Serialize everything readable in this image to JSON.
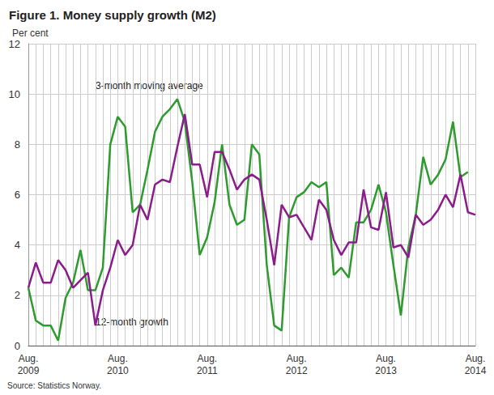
{
  "chart_data": {
    "type": "line",
    "title": "Figure 1. Money supply growth (M2)",
    "ylabel": "Per cent",
    "source": "Source: Statistics Norway.",
    "categories": [
      "Aug.\n2009",
      null,
      null,
      null,
      null,
      null,
      null,
      null,
      null,
      null,
      null,
      null,
      "Aug.\n2010",
      null,
      null,
      null,
      null,
      null,
      null,
      null,
      null,
      null,
      null,
      null,
      "Aug.\n2011",
      null,
      null,
      null,
      null,
      null,
      null,
      null,
      null,
      null,
      null,
      null,
      "Aug.\n2012",
      null,
      null,
      null,
      null,
      null,
      null,
      null,
      null,
      null,
      null,
      null,
      "Aug.\n2013",
      null,
      null,
      null,
      null,
      null,
      null,
      null,
      null,
      null,
      null,
      null,
      "Aug.\n2014"
    ],
    "series": [
      {
        "name": "3-month moving average",
        "color": "#2e9b2e",
        "values": [
          2.3,
          1.0,
          0.8,
          0.8,
          0.2,
          1.9,
          2.5,
          3.8,
          2.2,
          2.2,
          3.1,
          8.0,
          9.1,
          8.7,
          5.3,
          5.6,
          7.0,
          8.5,
          9.1,
          9.4,
          9.8,
          8.9,
          6.5,
          3.6,
          4.3,
          5.7,
          8.0,
          5.6,
          4.8,
          5.0,
          8.0,
          7.6,
          3.2,
          0.8,
          0.6,
          5.1,
          5.9,
          6.1,
          6.5,
          6.3,
          6.5,
          2.8,
          3.1,
          2.7,
          4.9,
          4.9,
          5.4,
          6.4,
          5.3,
          3.2,
          1.2,
          3.9,
          5.2,
          7.5,
          6.4,
          6.8,
          7.4,
          8.9,
          6.7,
          6.9,
          null
        ]
      },
      {
        "name": "12-month growth",
        "color": "#8b1c8b",
        "values": [
          2.3,
          3.3,
          2.5,
          2.5,
          3.4,
          3.0,
          2.3,
          2.6,
          2.9,
          0.8,
          2.2,
          3.1,
          4.2,
          3.6,
          4.0,
          5.6,
          5.0,
          6.4,
          6.6,
          6.5,
          7.9,
          9.2,
          7.2,
          7.2,
          5.9,
          7.7,
          7.7,
          7.0,
          6.2,
          6.6,
          6.8,
          6.6,
          5.0,
          3.2,
          5.6,
          5.1,
          5.2,
          4.7,
          4.2,
          5.8,
          5.4,
          4.2,
          3.6,
          4.1,
          4.1,
          6.2,
          4.7,
          4.6,
          6.1,
          3.9,
          4.0,
          3.5,
          5.2,
          4.8,
          5.0,
          5.4,
          6.0,
          5.5,
          6.8,
          5.3,
          5.2
        ]
      }
    ],
    "ylim": [
      0,
      12
    ],
    "yticks": [
      0,
      2,
      4,
      6,
      8,
      10,
      12
    ],
    "grid": true
  }
}
